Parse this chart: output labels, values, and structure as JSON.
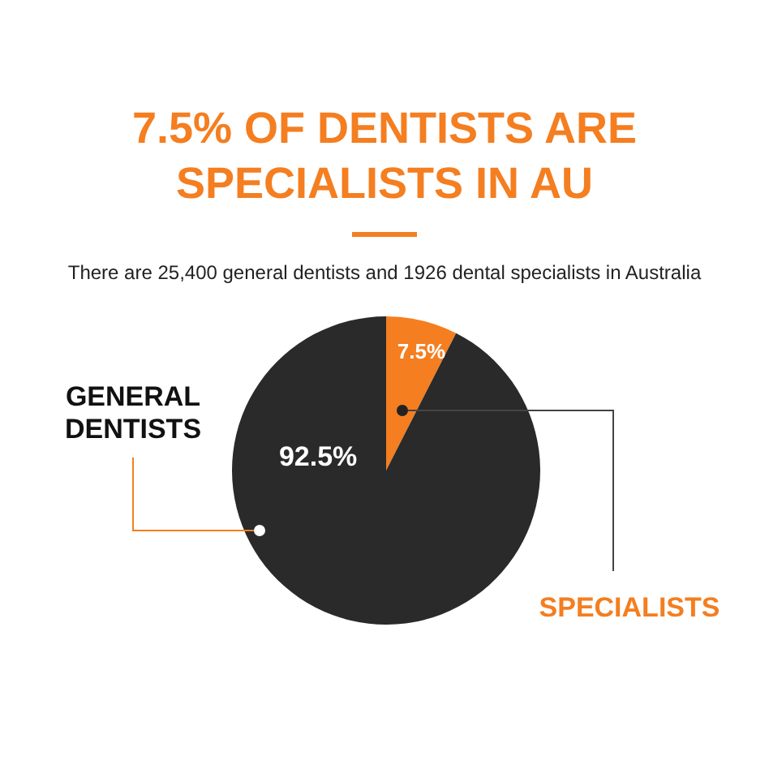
{
  "chart_data": {
    "type": "pie",
    "title": "7.5% OF DENTISTS ARE SPECIALISTS IN AU",
    "subtitle": "There are 25,400 general dentists and 1926 dental specialists in Australia",
    "categories": [
      "SPECIALISTS",
      "GENERAL DENTISTS"
    ],
    "values": [
      7.5,
      92.5
    ],
    "colors": [
      "#f47e20",
      "#2a2a2a"
    ],
    "value_labels": [
      "7.5%",
      "92.5%"
    ]
  }
}
